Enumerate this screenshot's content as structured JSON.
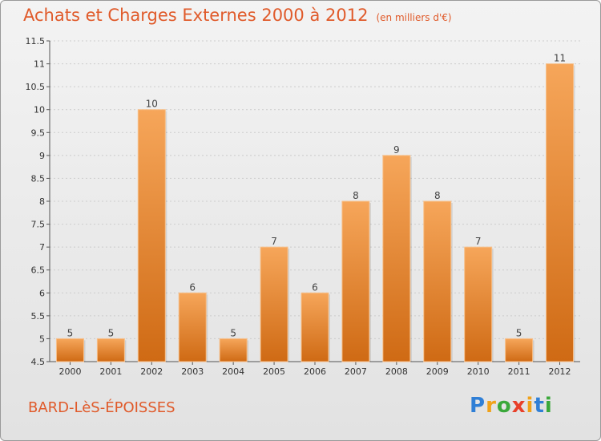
{
  "title": "Achats et Charges Externes 2000 à 2012",
  "unit": "(en milliers d'€)",
  "commune": "BARD-LèS-ÉPOISSES",
  "logo": {
    "text": "Proxiti",
    "letters": [
      {
        "ch": "P",
        "color": "#2f7fd6"
      },
      {
        "ch": "r",
        "color": "#f0a21a"
      },
      {
        "ch": "o",
        "color": "#3aa83a"
      },
      {
        "ch": "x",
        "color": "#e8402a"
      },
      {
        "ch": "i",
        "color": "#f0a21a"
      },
      {
        "ch": "t",
        "color": "#2f7fd6"
      },
      {
        "ch": "i",
        "color": "#3aa83a"
      }
    ]
  },
  "colors": {
    "title": "#e05a2a",
    "bar_light": "#f6a65a",
    "bar_dark": "#cf6a14",
    "grid": "#cccccc"
  },
  "chart_data": {
    "type": "bar",
    "categories": [
      "2000",
      "2001",
      "2002",
      "2003",
      "2004",
      "2005",
      "2006",
      "2007",
      "2008",
      "2009",
      "2010",
      "2011",
      "2012"
    ],
    "values": [
      5,
      5,
      10,
      6,
      5,
      7,
      6,
      8,
      9,
      8,
      7,
      5,
      11
    ],
    "data_labels": [
      "5",
      "5",
      "10",
      "6",
      "5",
      "7",
      "6",
      "8",
      "9",
      "8",
      "7",
      "5",
      "11"
    ],
    "ylim": [
      4.5,
      11.5
    ],
    "yticks": [
      "4.5",
      "5",
      "5.5",
      "6",
      "6.5",
      "7",
      "7.5",
      "8",
      "8.5",
      "9",
      "9.5",
      "10",
      "10.5",
      "11",
      "11.5"
    ],
    "grid": true,
    "xlabel": "",
    "ylabel": ""
  }
}
